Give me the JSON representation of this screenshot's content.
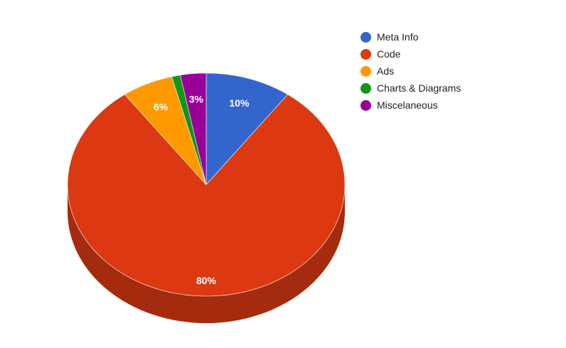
{
  "chart_data": {
    "type": "pie",
    "style": "3d",
    "title": "",
    "legend_position": "top-right",
    "slices": [
      {
        "name": "Meta Info",
        "value": 10,
        "label": "10%",
        "color": "#3366cc",
        "side_color": "#264d99"
      },
      {
        "name": "Code",
        "value": 80,
        "label": "80%",
        "color": "#dc3912",
        "side_color": "#a52b0e"
      },
      {
        "name": "Ads",
        "value": 6,
        "label": "6%",
        "color": "#ff9900",
        "side_color": "#bf7300"
      },
      {
        "name": "Charts & Diagrams",
        "value": 1,
        "label": "",
        "color": "#109618",
        "side_color": "#0c7112"
      },
      {
        "name": "Miscelaneous",
        "value": 3,
        "label": "3%",
        "color": "#990099",
        "side_color": "#730073"
      }
    ]
  }
}
